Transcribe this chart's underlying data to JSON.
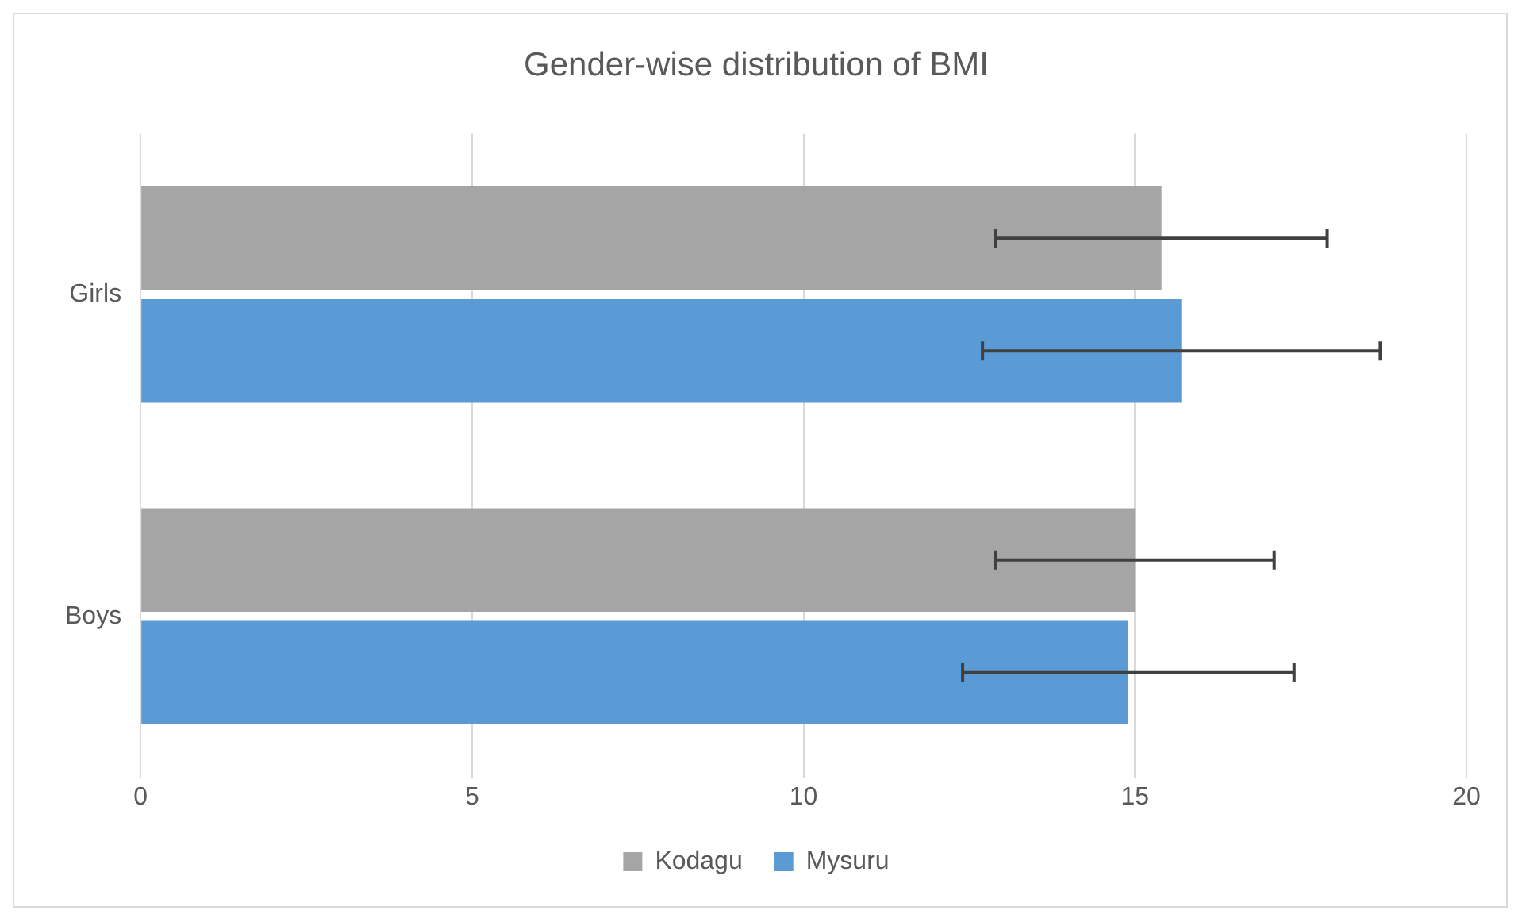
{
  "chart_data": {
    "type": "bar",
    "orientation": "horizontal",
    "title": "Gender-wise distribution of BMI",
    "categories": [
      "Girls",
      "Boys"
    ],
    "series": [
      {
        "name": "Kodagu",
        "color": "#a5a5a5",
        "values": [
          15.4,
          15.0
        ],
        "errors": [
          2.5,
          2.1
        ]
      },
      {
        "name": "Mysuru",
        "color": "#5b9bd5",
        "values": [
          15.7,
          14.9
        ],
        "errors": [
          3.0,
          2.5
        ]
      }
    ],
    "xlim": [
      0,
      20
    ],
    "xticks": [
      0,
      5,
      10,
      15,
      20
    ],
    "grid": "x",
    "legend": "bottom"
  }
}
